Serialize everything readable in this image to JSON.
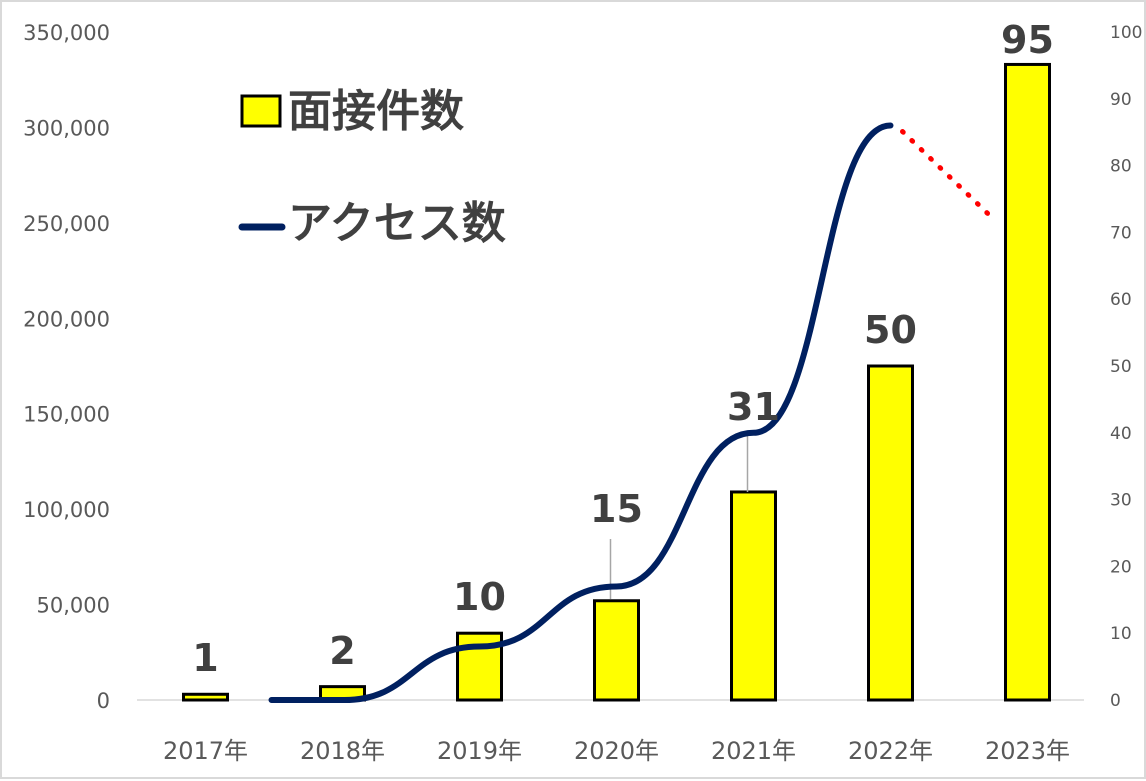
{
  "chart_data": {
    "type": "bar+line",
    "categories": [
      "2017年",
      "2018年",
      "2019年",
      "2020年",
      "2021年",
      "2022年",
      "2023年"
    ],
    "series": [
      {
        "name": "面接件数",
        "kind": "bar",
        "axis": "left",
        "values": [
          3000,
          7000,
          35000,
          52000,
          109000,
          175000,
          333000
        ],
        "data_labels": [
          "1",
          "2",
          "10",
          "15",
          "31",
          "50",
          "95"
        ],
        "color": "#FFFF00"
      },
      {
        "name": "アクセス数",
        "kind": "line",
        "axis": "right",
        "values": [
          0,
          0,
          8,
          17,
          40,
          86,
          null
        ],
        "projection": {
          "from": "2022年",
          "to": "2023年",
          "values": [
            86,
            75
          ],
          "style": "dotted",
          "color": "#FF0000"
        },
        "color": "#002060"
      }
    ],
    "y_left": {
      "ticks": [
        "0",
        "50,000",
        "100,000",
        "150,000",
        "200,000",
        "250,000",
        "300,000",
        "350,000"
      ],
      "ylim": [
        0,
        350000
      ]
    },
    "y_right": {
      "ticks": [
        "0",
        "10",
        "20",
        "30",
        "40",
        "50",
        "60",
        "70",
        "80",
        "90",
        "100"
      ],
      "ylim": [
        0,
        100
      ]
    },
    "grid": false,
    "legend": "top-left"
  },
  "legend": {
    "bar_label": "面接件数",
    "line_label": "アクセス数"
  }
}
